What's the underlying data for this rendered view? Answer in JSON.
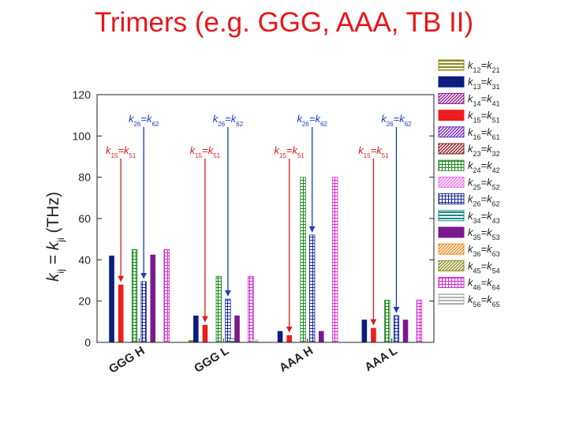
{
  "title": "Trimers (e.g. GGG, AAA, TB II)",
  "chart_data": {
    "type": "bar",
    "title": "Trimers (e.g. GGG, AAA, TB II)",
    "xlabel": "",
    "ylabel": {
      "k1": "k",
      "s1": "ij",
      "eq": " = ",
      "k2": "k",
      "s2": "ji",
      "unit": " (THz)"
    },
    "ylim": [
      0,
      120
    ],
    "yticks": [
      "0",
      "20",
      "40",
      "60",
      "80",
      "100",
      "120"
    ],
    "categories": [
      "GGG H",
      "GGG L",
      "AAA H",
      "AAA L"
    ],
    "series": [
      {
        "name": "k12=k21",
        "a": "12",
        "b": "21",
        "values": [
          0,
          1,
          0,
          0
        ],
        "color": "#8a8a1a",
        "pattern": "hlines"
      },
      {
        "name": "k13=k31",
        "a": "13",
        "b": "31",
        "values": [
          42,
          13,
          5.5,
          11
        ],
        "color": "#0c1d82",
        "pattern": "solid"
      },
      {
        "name": "k14=k41",
        "a": "14",
        "b": "41",
        "values": [
          0,
          0,
          0,
          0
        ],
        "color": "#8b1a8b",
        "pattern": "diag"
      },
      {
        "name": "k15=k51",
        "a": "15",
        "b": "51",
        "values": [
          28,
          8.5,
          3.5,
          7
        ],
        "color": "#ef1d1d",
        "pattern": "solid"
      },
      {
        "name": "k16=k61",
        "a": "16",
        "b": "61",
        "values": [
          0,
          0,
          0,
          0
        ],
        "color": "#6e28c8",
        "pattern": "diag"
      },
      {
        "name": "k23=k32",
        "a": "23",
        "b": "32",
        "values": [
          0,
          0,
          0,
          0
        ],
        "color": "#8b1a1a",
        "pattern": "diag"
      },
      {
        "name": "k24=k42",
        "a": "24",
        "b": "42",
        "values": [
          45,
          32,
          80,
          20.5
        ],
        "color": "#1a8a1a",
        "pattern": "grid"
      },
      {
        "name": "k25=k52",
        "a": "25",
        "b": "52",
        "values": [
          0,
          0,
          0,
          0
        ],
        "color": "#f06ef0",
        "pattern": "diag"
      },
      {
        "name": "k26=k62",
        "a": "26",
        "b": "62",
        "values": [
          29.5,
          21,
          52,
          13
        ],
        "color": "#1c2a9c",
        "pattern": "grid"
      },
      {
        "name": "k34=k43",
        "a": "34",
        "b": "43",
        "values": [
          0,
          1.8,
          0,
          0
        ],
        "color": "#1a8a8a",
        "pattern": "hlines"
      },
      {
        "name": "k35=k53",
        "a": "35",
        "b": "53",
        "values": [
          42.5,
          13,
          5.5,
          11
        ],
        "color": "#7a1a8a",
        "pattern": "solid"
      },
      {
        "name": "k36=k63",
        "a": "36",
        "b": "63",
        "values": [
          0,
          0,
          0,
          0
        ],
        "color": "#f08a1a",
        "pattern": "diag"
      },
      {
        "name": "k45=k54",
        "a": "45",
        "b": "54",
        "values": [
          0,
          0,
          0,
          0
        ],
        "color": "#8a8a1a",
        "pattern": "diag"
      },
      {
        "name": "k46=k64",
        "a": "46",
        "b": "64",
        "values": [
          45,
          32,
          80,
          20.5
        ],
        "color": "#d22ad2",
        "pattern": "grid"
      },
      {
        "name": "k56=k65",
        "a": "56",
        "b": "65",
        "values": [
          0,
          1.2,
          0,
          0
        ],
        "color": "#b4b4b4",
        "pattern": "hlines"
      }
    ],
    "annotations": [
      {
        "text": "k26=k62",
        "a": "26",
        "b": "62",
        "series": "k26=k62",
        "group": 0,
        "arrow_color": "#1a3ac8"
      },
      {
        "text": "k26=k62",
        "a": "26",
        "b": "62",
        "series": "k26=k62",
        "group": 1,
        "arrow_color": "#1a3ac8"
      },
      {
        "text": "k26=k62",
        "a": "26",
        "b": "62",
        "series": "k26=k62",
        "group": 2,
        "arrow_color": "#1a3ac8"
      },
      {
        "text": "k26=k62",
        "a": "26",
        "b": "62",
        "series": "k26=k62",
        "group": 3,
        "arrow_color": "#1a3ac8"
      },
      {
        "text": "k15=k51",
        "a": "15",
        "b": "51",
        "series": "k15=k51",
        "group": 0,
        "arrow_color": "#e01a1a"
      },
      {
        "text": "k15=k51",
        "a": "15",
        "b": "51",
        "series": "k15=k51",
        "group": 1,
        "arrow_color": "#e01a1a"
      },
      {
        "text": "k15=k51",
        "a": "15",
        "b": "51",
        "series": "k15=k51",
        "group": 2,
        "arrow_color": "#e01a1a"
      },
      {
        "text": "k15=k51",
        "a": "15",
        "b": "51",
        "series": "k15=k51",
        "group": 3,
        "arrow_color": "#e01a1a"
      }
    ],
    "legend_position": "right",
    "grid": false
  }
}
